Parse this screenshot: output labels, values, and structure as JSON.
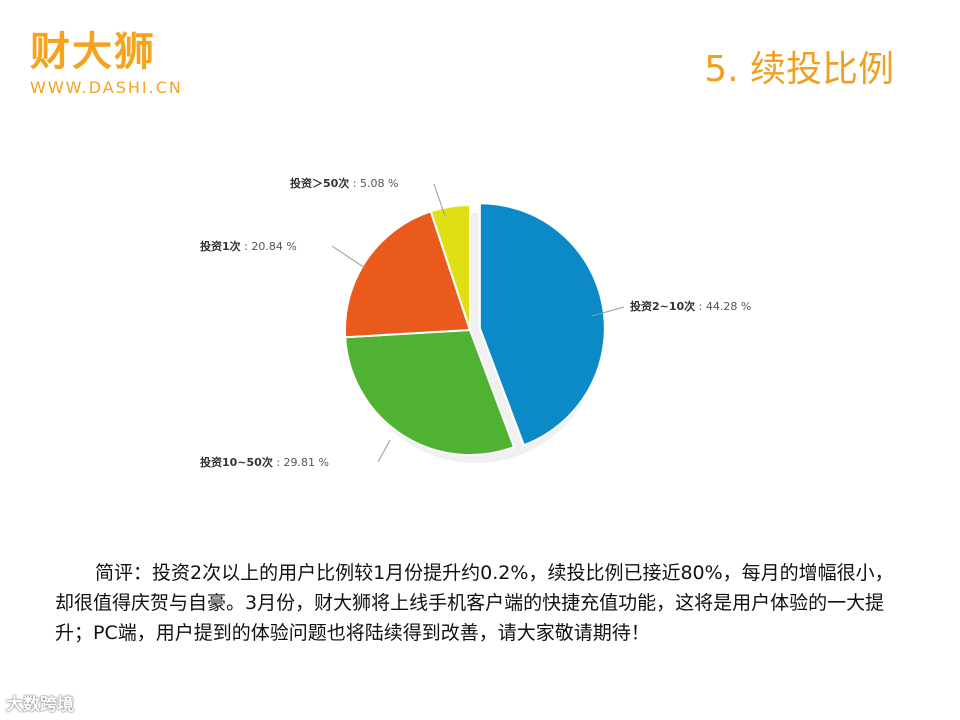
{
  "logo": {
    "name": "财大狮",
    "url": "WWW.DASHI.CN"
  },
  "slide": {
    "title": "5. 续投比例"
  },
  "chart_data": {
    "type": "pie",
    "slices": [
      {
        "name": "投资2~10次",
        "value": 44.28,
        "value_label": "44.28 %",
        "color": "#0b8ac7",
        "exploded": true
      },
      {
        "name": "投资10~50次",
        "value": 29.81,
        "value_label": "29.81 %",
        "color": "#4fb233",
        "exploded": false
      },
      {
        "name": "投资1次",
        "value": 20.84,
        "value_label": "20.84 %",
        "color": "#e95a1c",
        "exploded": false
      },
      {
        "name": "投资＞50次",
        "value": 5.08,
        "value_label": "5.08 %",
        "color": "#dfe013",
        "exploded": false
      }
    ],
    "title": "",
    "legend": "none"
  },
  "commentary": {
    "text": "简评：投资2次以上的用户比例较1月份提升约0.2%，续投比例已接近80%，每月的增幅很小，却很值得庆贺与自豪。3月份，财大狮将上线手机客户端的快捷充值功能，这将是用户体验的一大提升；PC端，用户提到的体验问题也将陆续得到改善，请大家敬请期待！"
  },
  "watermark": {
    "text": "大数跨境"
  }
}
